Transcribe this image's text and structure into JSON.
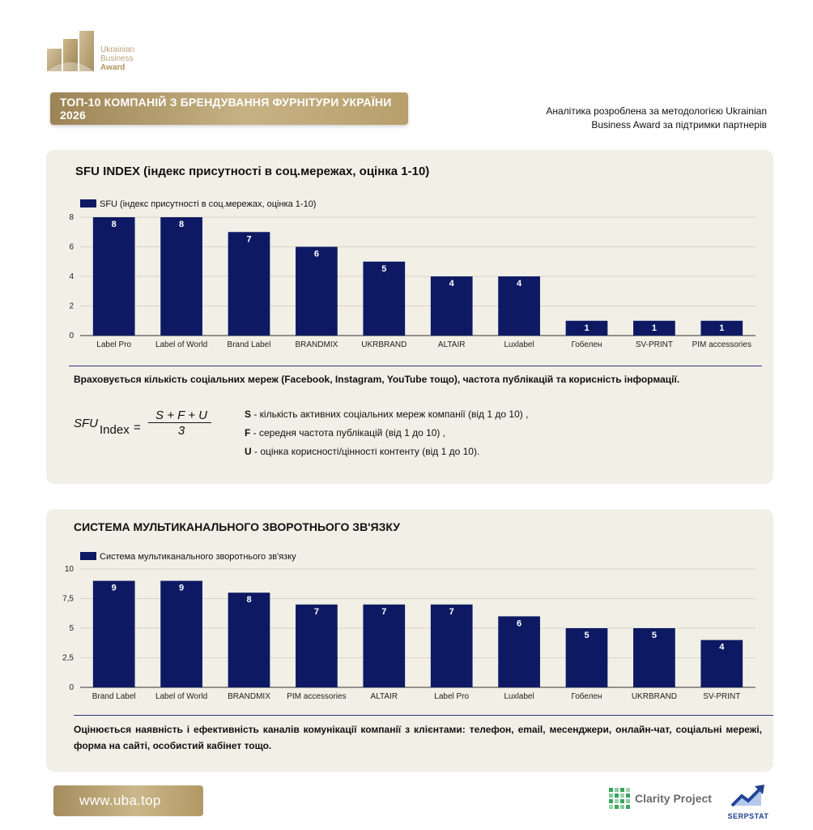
{
  "logo": {
    "line1": "Ukrainian",
    "line2": "Business",
    "line3": "Award"
  },
  "banner": {
    "title": "ТОП-10 КОМПАНІЙ З БРЕНДУВАННЯ ФУРНІТУРИ УКРАЇНИ 2026"
  },
  "analytics_note": {
    "line1": "Аналітика розроблена за методологією Ukrainian",
    "line2": "Business Award за підтримки партнерів"
  },
  "colors": {
    "bar": "#0d1a63",
    "gold": "#b8a377",
    "panel_bg": "#f2efe6"
  },
  "panel1": {
    "title": "SFU INDEX (індекс присутності в соц.мережах, оцінка 1-10)",
    "description": "Враховується кількість соціальних мереж (Facebook, Instagram, YouTube тощо), частота публікацій та корисність інформації.",
    "formula": {
      "lhs": "SFU",
      "sub": "Index",
      "eq": "=",
      "numerator": "S + F + U",
      "denominator": "3"
    },
    "variables": [
      {
        "key": "S",
        "text": " - кількість активних соціальних мереж компанії (від 1 до 10) ,"
      },
      {
        "key": "F",
        "text": " - середня частота публікацій (від 1 до 10) ,"
      },
      {
        "key": "U",
        "text": " - оцінка корисності/цінності контенту (від 1 до 10)."
      }
    ]
  },
  "panel2": {
    "title": "СИСТЕМА МУЛЬТИКАНАЛЬНОГО ЗВОРОТНЬОГО ЗВ'ЯЗКУ",
    "description": "Оцінюється наявність і ефективність каналів комунікації компанії з клієнтами: телефон, email, месенджери, онлайн-чат, соціальні мережі, форма на сайті, особистий кабінет тощо."
  },
  "chart_data": [
    {
      "type": "bar",
      "title": "",
      "legend": [
        "SFU (індекс присутності в соц.мережах, оцінка 1-10)"
      ],
      "legend_position": "top-left",
      "categories": [
        "Label Pro",
        "Label of World",
        "Brand Label",
        "BRANDMIX",
        "UKRBRAND",
        "ALTAIR",
        "Luxlabel",
        "Гобелен",
        "SV-PRINT",
        "PIM accessories"
      ],
      "series": [
        {
          "name": "SFU (індекс присутності в соц.мережах, оцінка 1-10)",
          "values": [
            8,
            8,
            7,
            6,
            5,
            4,
            4,
            1,
            1,
            1
          ]
        }
      ],
      "ylim": [
        0,
        8
      ],
      "yticks": [
        "0",
        "2",
        "4",
        "6",
        "8"
      ],
      "grid": true
    },
    {
      "type": "bar",
      "title": "",
      "legend": [
        "Система мультиканального зворотнього зв'язку"
      ],
      "legend_position": "top-left",
      "categories": [
        "Brand Label",
        "Label of World",
        "BRANDMIX",
        "PIM accessories",
        "ALTAIR",
        "Label Pro",
        "Luxlabel",
        "Гобелен",
        "UKRBRAND",
        "SV-PRINT"
      ],
      "series": [
        {
          "name": "Система мультиканального зворотнього зв'язку",
          "values": [
            9,
            9,
            8,
            7,
            7,
            7,
            6,
            5,
            5,
            4
          ]
        }
      ],
      "ylim": [
        0,
        10
      ],
      "yticks": [
        "0",
        "2,5",
        "5",
        "7,5",
        "10"
      ],
      "grid": true
    }
  ],
  "footer": {
    "url": "www.uba.top",
    "partner1": "Clarity Project",
    "partner2": "SERPSTAT"
  }
}
